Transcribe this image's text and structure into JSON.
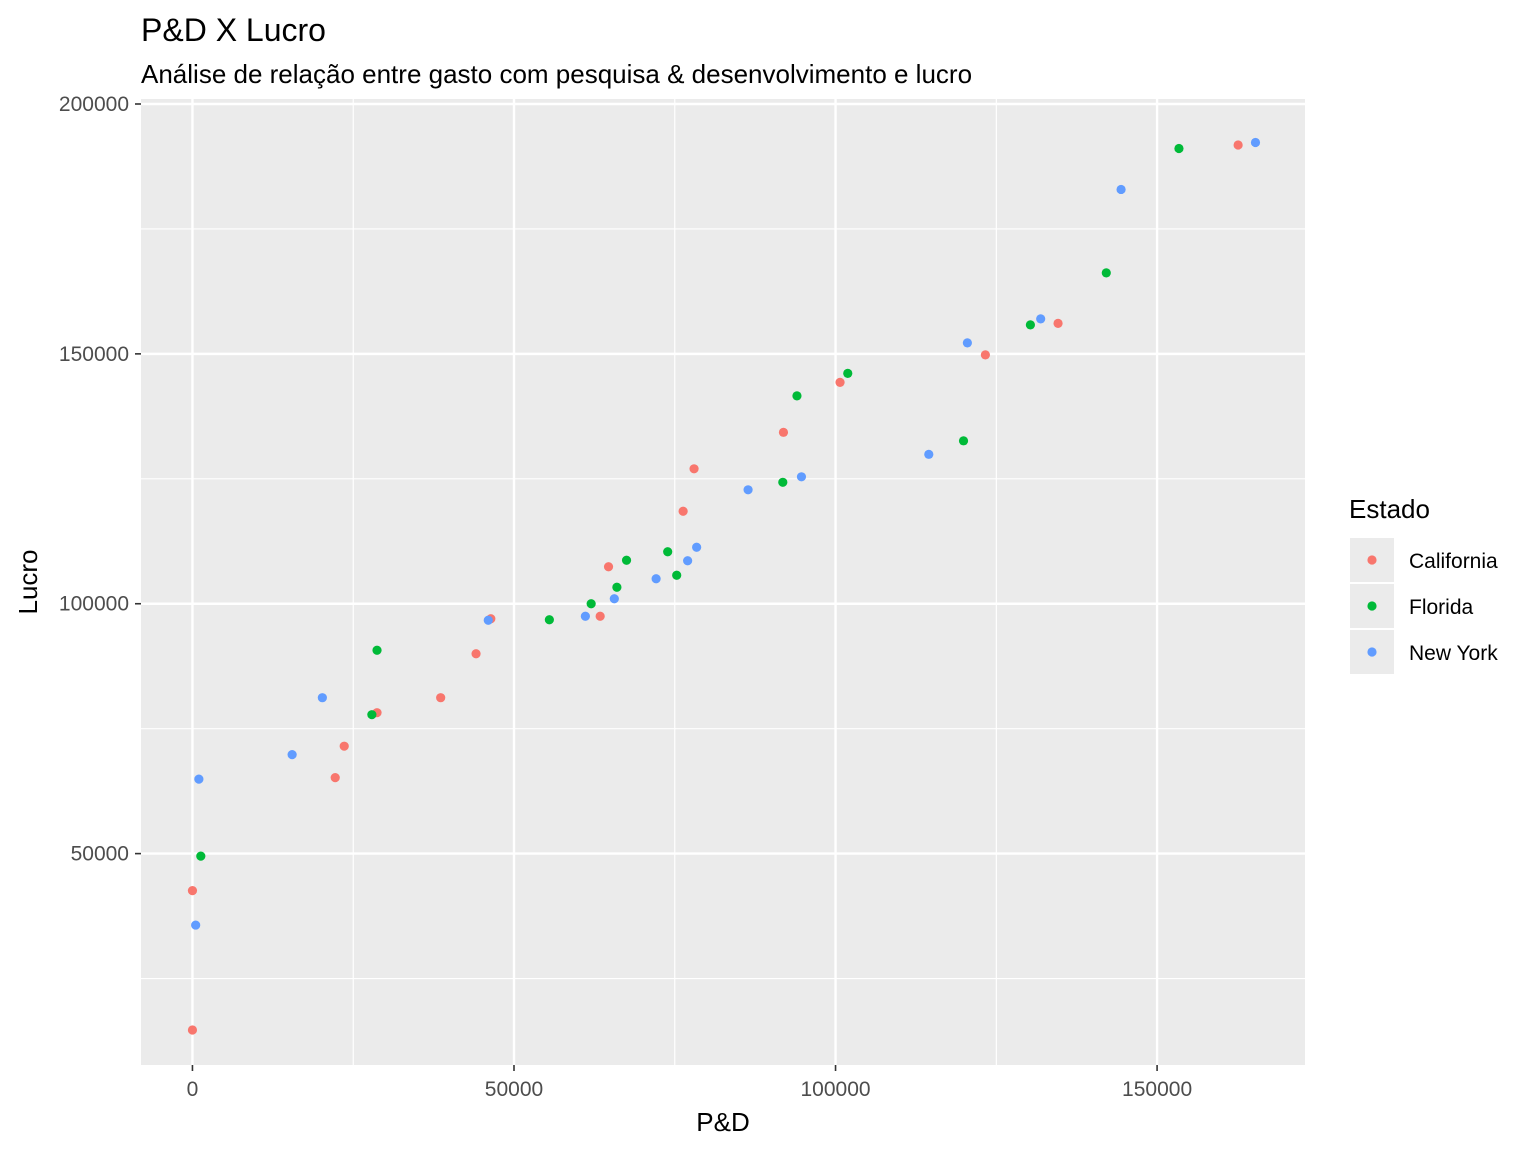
{
  "chart_data": {
    "type": "scatter",
    "title": "P&D X Lucro",
    "subtitle": "Análise de relação entre gasto com pesquisa & desenvolvimento e lucro",
    "xlabel": "P&D",
    "ylabel": "Lucro",
    "xlim": [
      -8000,
      173000
    ],
    "ylim": [
      7700,
      201000
    ],
    "x_ticks": [
      0,
      50000,
      100000,
      150000
    ],
    "x_tick_labels": [
      "0",
      "50000",
      "100000",
      "150000"
    ],
    "y_ticks": [
      50000,
      100000,
      150000,
      200000
    ],
    "y_tick_labels": [
      "50000",
      "100000",
      "150000",
      "200000"
    ],
    "x_minor_ticks": [
      25000,
      75000,
      125000
    ],
    "y_minor_ticks": [
      25000,
      75000,
      125000,
      175000
    ],
    "grid": true,
    "panel_background": "#ebebeb",
    "grid_color": "#ffffff",
    "legend": {
      "title": "Estado",
      "placement": "right",
      "entries": [
        "California",
        "Florida",
        "New York"
      ]
    },
    "series": [
      {
        "name": "California",
        "color": "#f8766d",
        "points": [
          [
            0,
            14700
          ],
          [
            0,
            42600
          ],
          [
            22200,
            65200
          ],
          [
            23600,
            71500
          ],
          [
            28700,
            78200
          ],
          [
            38600,
            81200
          ],
          [
            44100,
            90000
          ],
          [
            46400,
            97000
          ],
          [
            63400,
            97500
          ],
          [
            64700,
            107400
          ],
          [
            76300,
            118500
          ],
          [
            78000,
            127000
          ],
          [
            91900,
            134300
          ],
          [
            100700,
            144300
          ],
          [
            123300,
            149800
          ],
          [
            134600,
            156100
          ],
          [
            162600,
            191800
          ]
        ]
      },
      {
        "name": "Florida",
        "color": "#00ba38",
        "points": [
          [
            1300,
            49500
          ],
          [
            27900,
            77800
          ],
          [
            28700,
            90700
          ],
          [
            55500,
            96800
          ],
          [
            62000,
            100000
          ],
          [
            66000,
            103300
          ],
          [
            67500,
            108700
          ],
          [
            73900,
            110400
          ],
          [
            75300,
            105700
          ],
          [
            91800,
            124300
          ],
          [
            94000,
            141600
          ],
          [
            101900,
            146100
          ],
          [
            119900,
            132600
          ],
          [
            130300,
            155800
          ],
          [
            142100,
            166200
          ],
          [
            153400,
            191100
          ]
        ]
      },
      {
        "name": "New York",
        "color": "#619cff",
        "points": [
          [
            500,
            35700
          ],
          [
            1000,
            64900
          ],
          [
            15500,
            69800
          ],
          [
            20200,
            81200
          ],
          [
            46000,
            96700
          ],
          [
            61100,
            97500
          ],
          [
            65600,
            101000
          ],
          [
            72100,
            105000
          ],
          [
            77000,
            108600
          ],
          [
            78400,
            111300
          ],
          [
            86400,
            122800
          ],
          [
            94700,
            125400
          ],
          [
            114500,
            129900
          ],
          [
            120500,
            152200
          ],
          [
            131900,
            157000
          ],
          [
            144400,
            182900
          ],
          [
            165300,
            192300
          ]
        ]
      }
    ]
  }
}
